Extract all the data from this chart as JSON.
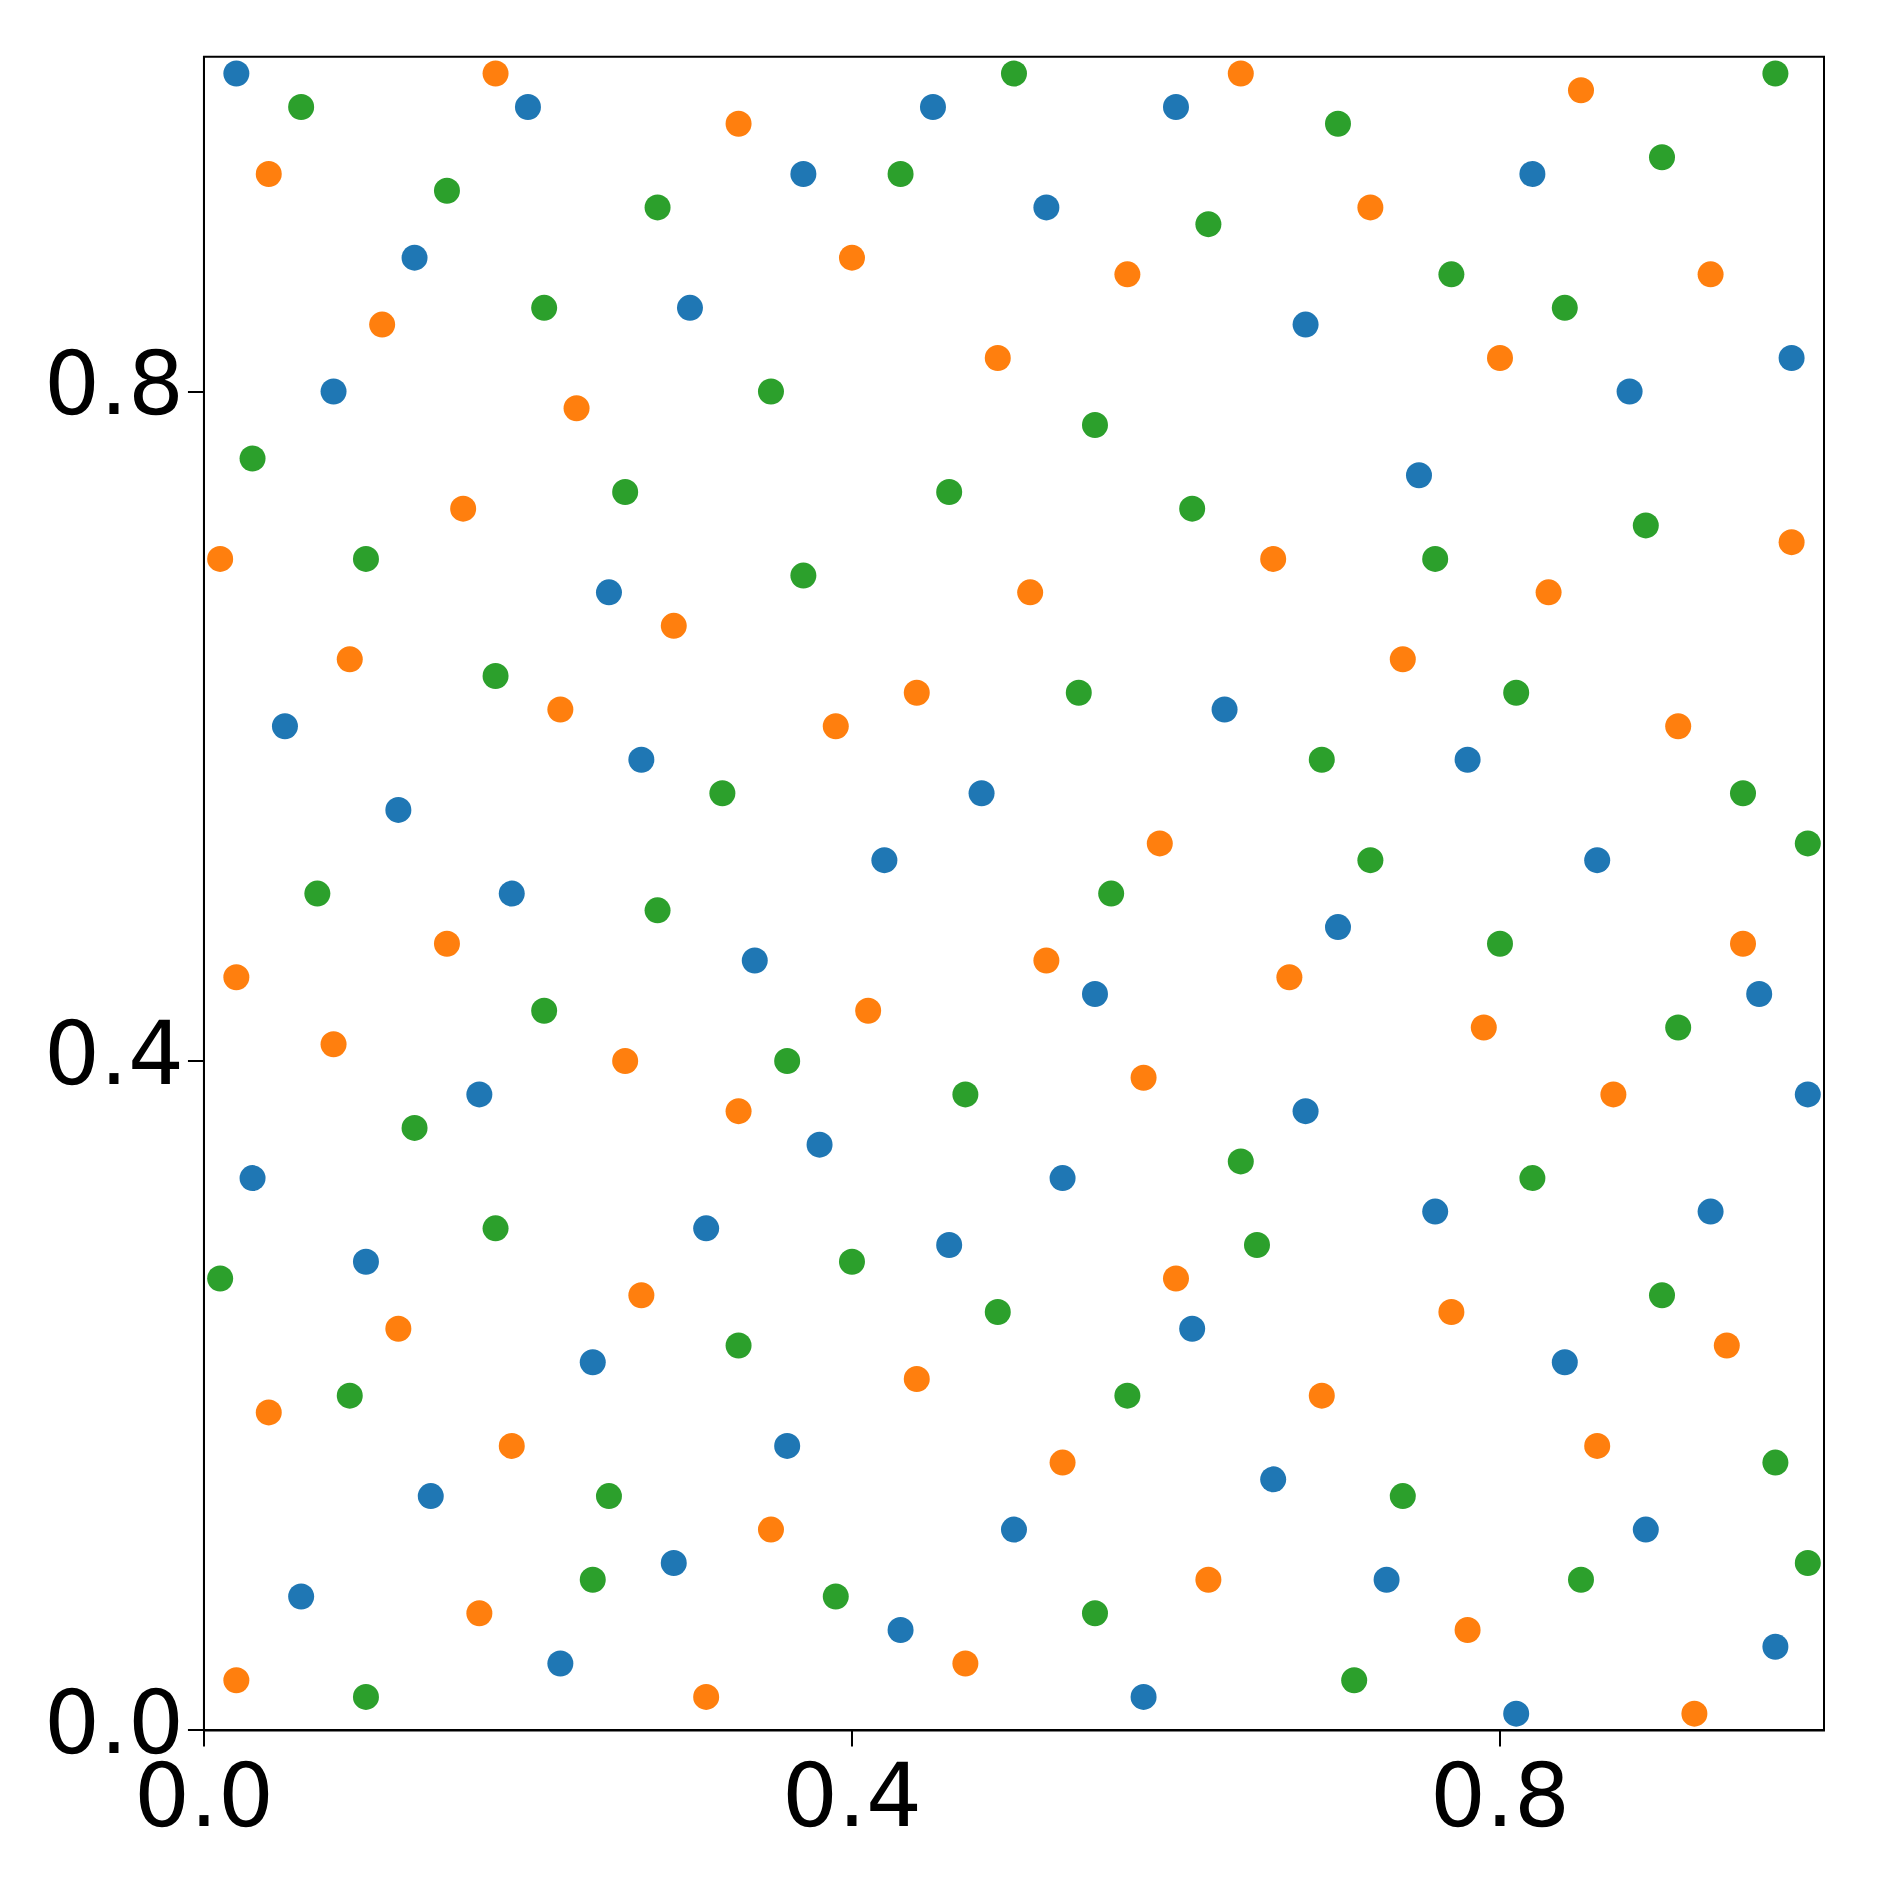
{
  "chart_data": {
    "type": "scatter",
    "marker": "circle",
    "legend": false,
    "xlim": [
      0,
      1
    ],
    "ylim": [
      0,
      1
    ],
    "xticks": [
      {
        "value": 0,
        "label": "0.0"
      },
      {
        "value": 0.4,
        "label": "0.4"
      },
      {
        "value": 0.8,
        "label": "0.8"
      }
    ],
    "yticks": [
      {
        "value": 0,
        "label": "0.0"
      },
      {
        "value": 0.4,
        "label": "0.4"
      },
      {
        "value": 0.8,
        "label": "0.8"
      }
    ],
    "series": [
      {
        "color": "#1f77b4",
        "x": [
          0.02,
          0.08,
          0.13,
          0.2,
          0.25,
          0.3,
          0.37,
          0.45,
          0.52,
          0.6,
          0.68,
          0.75,
          0.82,
          0.88,
          0.98,
          0.05,
          0.12,
          0.19,
          0.27,
          0.34,
          0.42,
          0.48,
          0.55,
          0.63,
          0.7,
          0.78,
          0.86,
          0.96,
          0.03,
          0.1,
          0.17,
          0.24,
          0.31,
          0.38,
          0.46,
          0.53,
          0.61,
          0.68,
          0.76,
          0.84,
          0.93,
          0.99,
          0.06,
          0.14,
          0.22,
          0.29,
          0.36,
          0.43,
          0.5,
          0.58,
          0.66,
          0.73,
          0.81,
          0.89,
          0.97
        ],
        "values": [
          0.99,
          0.8,
          0.88,
          0.97,
          0.68,
          0.85,
          0.93,
          0.97,
          0.91,
          0.97,
          0.84,
          0.75,
          0.93,
          0.8,
          0.82,
          0.6,
          0.55,
          0.5,
          0.58,
          0.46,
          0.52,
          0.56,
          0.44,
          0.61,
          0.48,
          0.58,
          0.52,
          0.44,
          0.33,
          0.28,
          0.38,
          0.22,
          0.3,
          0.35,
          0.29,
          0.33,
          0.24,
          0.37,
          0.31,
          0.22,
          0.31,
          0.38,
          0.08,
          0.14,
          0.04,
          0.1,
          0.17,
          0.06,
          0.12,
          0.02,
          0.15,
          0.09,
          0.01,
          0.12,
          0.05
        ]
      },
      {
        "color": "#ff7f0e",
        "x": [
          0.04,
          0.11,
          0.18,
          0.23,
          0.33,
          0.4,
          0.49,
          0.57,
          0.64,
          0.72,
          0.8,
          0.85,
          0.93,
          0.01,
          0.09,
          0.16,
          0.22,
          0.29,
          0.39,
          0.44,
          0.51,
          0.59,
          0.66,
          0.74,
          0.83,
          0.91,
          0.98,
          0.02,
          0.08,
          0.15,
          0.26,
          0.33,
          0.41,
          0.52,
          0.58,
          0.67,
          0.79,
          0.87,
          0.95,
          0.04,
          0.12,
          0.19,
          0.27,
          0.35,
          0.44,
          0.53,
          0.6,
          0.69,
          0.77,
          0.86,
          0.94,
          0.02,
          0.17,
          0.31,
          0.47,
          0.62,
          0.78,
          0.92
        ],
        "values": [
          0.93,
          0.84,
          0.99,
          0.79,
          0.96,
          0.88,
          0.82,
          0.87,
          0.99,
          0.91,
          0.82,
          0.98,
          0.87,
          0.7,
          0.64,
          0.73,
          0.61,
          0.66,
          0.6,
          0.62,
          0.68,
          0.53,
          0.7,
          0.64,
          0.68,
          0.6,
          0.71,
          0.45,
          0.41,
          0.47,
          0.4,
          0.37,
          0.43,
          0.46,
          0.39,
          0.45,
          0.42,
          0.38,
          0.47,
          0.19,
          0.24,
          0.17,
          0.26,
          0.12,
          0.21,
          0.16,
          0.27,
          0.2,
          0.25,
          0.17,
          0.23,
          0.03,
          0.07,
          0.02,
          0.04,
          0.09,
          0.06,
          0.01
        ]
      },
      {
        "color": "#2ca02c",
        "x": [
          0.06,
          0.15,
          0.21,
          0.28,
          0.35,
          0.43,
          0.5,
          0.55,
          0.62,
          0.7,
          0.77,
          0.84,
          0.9,
          0.97,
          0.03,
          0.1,
          0.18,
          0.26,
          0.32,
          0.37,
          0.46,
          0.54,
          0.61,
          0.69,
          0.76,
          0.81,
          0.89,
          0.95,
          0.07,
          0.13,
          0.21,
          0.28,
          0.36,
          0.47,
          0.56,
          0.64,
          0.72,
          0.8,
          0.91,
          0.99,
          0.01,
          0.09,
          0.18,
          0.25,
          0.33,
          0.4,
          0.49,
          0.57,
          0.65,
          0.74,
          0.82,
          0.9,
          0.97,
          0.1,
          0.24,
          0.39,
          0.55,
          0.71,
          0.85,
          0.99
        ],
        "values": [
          0.97,
          0.92,
          0.85,
          0.91,
          0.8,
          0.93,
          0.99,
          0.78,
          0.9,
          0.96,
          0.87,
          0.85,
          0.94,
          0.99,
          0.76,
          0.7,
          0.63,
          0.74,
          0.56,
          0.69,
          0.74,
          0.62,
          0.73,
          0.58,
          0.7,
          0.62,
          0.72,
          0.56,
          0.5,
          0.36,
          0.43,
          0.49,
          0.4,
          0.38,
          0.5,
          0.34,
          0.52,
          0.47,
          0.42,
          0.53,
          0.27,
          0.2,
          0.3,
          0.14,
          0.23,
          0.28,
          0.25,
          0.2,
          0.29,
          0.14,
          0.33,
          0.26,
          0.16,
          0.02,
          0.09,
          0.08,
          0.07,
          0.03,
          0.09,
          0.1
        ]
      }
    ]
  }
}
